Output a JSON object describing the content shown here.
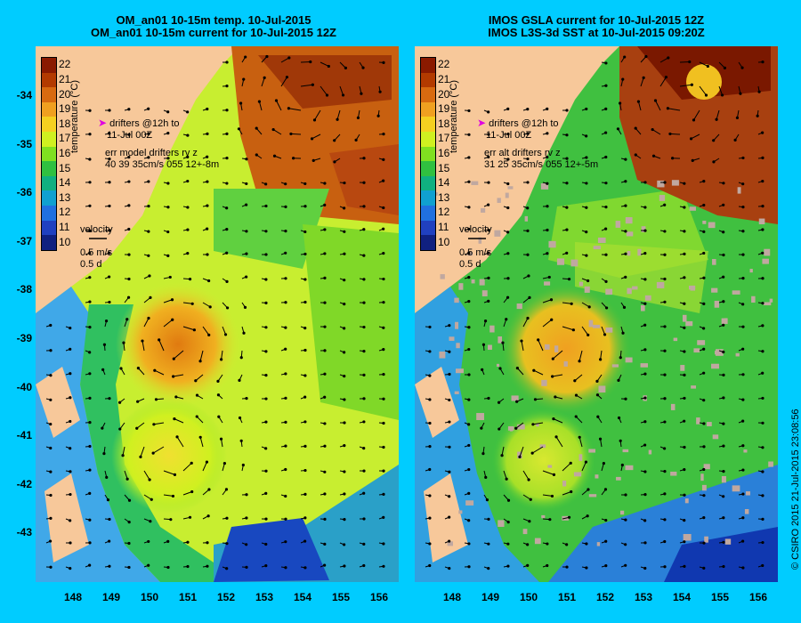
{
  "panels": [
    {
      "title_line1": "OM_an01 10-15m temp. 10-Jul-2015",
      "title_line2": "OM_an01 10-15m current for 10-Jul-2015 12Z",
      "legend_drifters": "drifters @12h to",
      "legend_drifters_2": "11-Jul 00Z",
      "legend_err_line1": "err model drifters rv z",
      "legend_err_line2": "40 39 35cm/s 055 12+-8m",
      "velocity_label": "velocity",
      "velocity_speed": "0.5 m/s",
      "velocity_time": "0.5 d"
    },
    {
      "title_line1": "IMOS GSLA current for 10-Jul-2015 12Z",
      "title_line2": "IMOS L3S-3d SST at 10-Jul-2015 09:20Z",
      "legend_drifters": "drifters @12h to",
      "legend_drifters_2": "11-Jul 00Z",
      "legend_err_line1": "err alt drifters rv z",
      "legend_err_line2": "31 25 35cm/s 055 12+-5m",
      "velocity_label": "velocity",
      "velocity_speed": "0.5 m/s",
      "velocity_time": "0.5 d"
    }
  ],
  "colorbar": {
    "title": "temperature (°C)",
    "labels": [
      "22",
      "21",
      "20",
      "19",
      "18",
      "17",
      "16",
      "15",
      "14",
      "13",
      "12",
      "11",
      "10"
    ],
    "colors": [
      "#8a1a00",
      "#b33a00",
      "#d86a10",
      "#f0a020",
      "#f5d020",
      "#d0f020",
      "#80e020",
      "#30c040",
      "#10b080",
      "#10a0d0",
      "#2070e0",
      "#2040c0",
      "#102080"
    ]
  },
  "x_ticks": [
    "148",
    "149",
    "150",
    "151",
    "152",
    "153",
    "154",
    "155",
    "156"
  ],
  "y_ticks": [
    "-34",
    "-35",
    "-36",
    "-37",
    "-38",
    "-39",
    "-40",
    "-41",
    "-42",
    "-43"
  ],
  "credit": "© CSIRO 2015   21-Jul-2015 23:08:56",
  "colors": {
    "background": "#00ccff",
    "land": "#f7c89a",
    "drifter": "#e000e0"
  }
}
